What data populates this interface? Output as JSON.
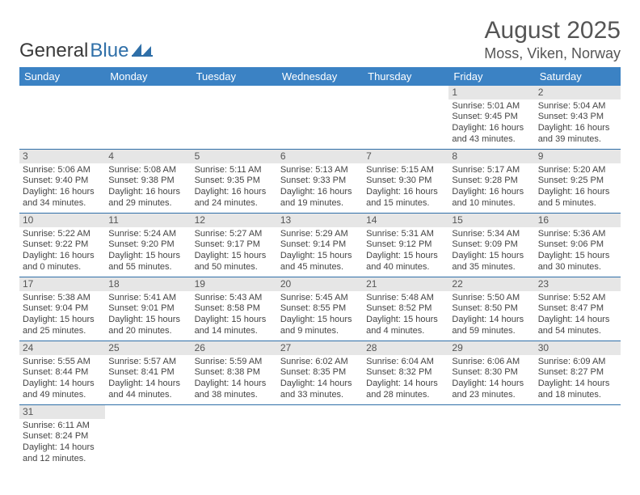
{
  "logo": {
    "part1": "General",
    "part2": "Blue"
  },
  "header": {
    "title": "August 2025",
    "location": "Moss, Viken, Norway"
  },
  "colors": {
    "header_blue": "#3b82c4",
    "row_separator": "#2f6fa8",
    "daynum_bg": "#e6e6e6",
    "text": "#3a3a3a"
  },
  "weekdays": [
    "Sunday",
    "Monday",
    "Tuesday",
    "Wednesday",
    "Thursday",
    "Friday",
    "Saturday"
  ],
  "weeks": [
    [
      null,
      null,
      null,
      null,
      null,
      {
        "n": "1",
        "sr": "Sunrise: 5:01 AM",
        "ss": "Sunset: 9:45 PM",
        "d1": "Daylight: 16 hours",
        "d2": "and 43 minutes."
      },
      {
        "n": "2",
        "sr": "Sunrise: 5:04 AM",
        "ss": "Sunset: 9:43 PM",
        "d1": "Daylight: 16 hours",
        "d2": "and 39 minutes."
      }
    ],
    [
      {
        "n": "3",
        "sr": "Sunrise: 5:06 AM",
        "ss": "Sunset: 9:40 PM",
        "d1": "Daylight: 16 hours",
        "d2": "and 34 minutes."
      },
      {
        "n": "4",
        "sr": "Sunrise: 5:08 AM",
        "ss": "Sunset: 9:38 PM",
        "d1": "Daylight: 16 hours",
        "d2": "and 29 minutes."
      },
      {
        "n": "5",
        "sr": "Sunrise: 5:11 AM",
        "ss": "Sunset: 9:35 PM",
        "d1": "Daylight: 16 hours",
        "d2": "and 24 minutes."
      },
      {
        "n": "6",
        "sr": "Sunrise: 5:13 AM",
        "ss": "Sunset: 9:33 PM",
        "d1": "Daylight: 16 hours",
        "d2": "and 19 minutes."
      },
      {
        "n": "7",
        "sr": "Sunrise: 5:15 AM",
        "ss": "Sunset: 9:30 PM",
        "d1": "Daylight: 16 hours",
        "d2": "and 15 minutes."
      },
      {
        "n": "8",
        "sr": "Sunrise: 5:17 AM",
        "ss": "Sunset: 9:28 PM",
        "d1": "Daylight: 16 hours",
        "d2": "and 10 minutes."
      },
      {
        "n": "9",
        "sr": "Sunrise: 5:20 AM",
        "ss": "Sunset: 9:25 PM",
        "d1": "Daylight: 16 hours",
        "d2": "and 5 minutes."
      }
    ],
    [
      {
        "n": "10",
        "sr": "Sunrise: 5:22 AM",
        "ss": "Sunset: 9:22 PM",
        "d1": "Daylight: 16 hours",
        "d2": "and 0 minutes."
      },
      {
        "n": "11",
        "sr": "Sunrise: 5:24 AM",
        "ss": "Sunset: 9:20 PM",
        "d1": "Daylight: 15 hours",
        "d2": "and 55 minutes."
      },
      {
        "n": "12",
        "sr": "Sunrise: 5:27 AM",
        "ss": "Sunset: 9:17 PM",
        "d1": "Daylight: 15 hours",
        "d2": "and 50 minutes."
      },
      {
        "n": "13",
        "sr": "Sunrise: 5:29 AM",
        "ss": "Sunset: 9:14 PM",
        "d1": "Daylight: 15 hours",
        "d2": "and 45 minutes."
      },
      {
        "n": "14",
        "sr": "Sunrise: 5:31 AM",
        "ss": "Sunset: 9:12 PM",
        "d1": "Daylight: 15 hours",
        "d2": "and 40 minutes."
      },
      {
        "n": "15",
        "sr": "Sunrise: 5:34 AM",
        "ss": "Sunset: 9:09 PM",
        "d1": "Daylight: 15 hours",
        "d2": "and 35 minutes."
      },
      {
        "n": "16",
        "sr": "Sunrise: 5:36 AM",
        "ss": "Sunset: 9:06 PM",
        "d1": "Daylight: 15 hours",
        "d2": "and 30 minutes."
      }
    ],
    [
      {
        "n": "17",
        "sr": "Sunrise: 5:38 AM",
        "ss": "Sunset: 9:04 PM",
        "d1": "Daylight: 15 hours",
        "d2": "and 25 minutes."
      },
      {
        "n": "18",
        "sr": "Sunrise: 5:41 AM",
        "ss": "Sunset: 9:01 PM",
        "d1": "Daylight: 15 hours",
        "d2": "and 20 minutes."
      },
      {
        "n": "19",
        "sr": "Sunrise: 5:43 AM",
        "ss": "Sunset: 8:58 PM",
        "d1": "Daylight: 15 hours",
        "d2": "and 14 minutes."
      },
      {
        "n": "20",
        "sr": "Sunrise: 5:45 AM",
        "ss": "Sunset: 8:55 PM",
        "d1": "Daylight: 15 hours",
        "d2": "and 9 minutes."
      },
      {
        "n": "21",
        "sr": "Sunrise: 5:48 AM",
        "ss": "Sunset: 8:52 PM",
        "d1": "Daylight: 15 hours",
        "d2": "and 4 minutes."
      },
      {
        "n": "22",
        "sr": "Sunrise: 5:50 AM",
        "ss": "Sunset: 8:50 PM",
        "d1": "Daylight: 14 hours",
        "d2": "and 59 minutes."
      },
      {
        "n": "23",
        "sr": "Sunrise: 5:52 AM",
        "ss": "Sunset: 8:47 PM",
        "d1": "Daylight: 14 hours",
        "d2": "and 54 minutes."
      }
    ],
    [
      {
        "n": "24",
        "sr": "Sunrise: 5:55 AM",
        "ss": "Sunset: 8:44 PM",
        "d1": "Daylight: 14 hours",
        "d2": "and 49 minutes."
      },
      {
        "n": "25",
        "sr": "Sunrise: 5:57 AM",
        "ss": "Sunset: 8:41 PM",
        "d1": "Daylight: 14 hours",
        "d2": "and 44 minutes."
      },
      {
        "n": "26",
        "sr": "Sunrise: 5:59 AM",
        "ss": "Sunset: 8:38 PM",
        "d1": "Daylight: 14 hours",
        "d2": "and 38 minutes."
      },
      {
        "n": "27",
        "sr": "Sunrise: 6:02 AM",
        "ss": "Sunset: 8:35 PM",
        "d1": "Daylight: 14 hours",
        "d2": "and 33 minutes."
      },
      {
        "n": "28",
        "sr": "Sunrise: 6:04 AM",
        "ss": "Sunset: 8:32 PM",
        "d1": "Daylight: 14 hours",
        "d2": "and 28 minutes."
      },
      {
        "n": "29",
        "sr": "Sunrise: 6:06 AM",
        "ss": "Sunset: 8:30 PM",
        "d1": "Daylight: 14 hours",
        "d2": "and 23 minutes."
      },
      {
        "n": "30",
        "sr": "Sunrise: 6:09 AM",
        "ss": "Sunset: 8:27 PM",
        "d1": "Daylight: 14 hours",
        "d2": "and 18 minutes."
      }
    ],
    [
      {
        "n": "31",
        "sr": "Sunrise: 6:11 AM",
        "ss": "Sunset: 8:24 PM",
        "d1": "Daylight: 14 hours",
        "d2": "and 12 minutes."
      },
      null,
      null,
      null,
      null,
      null,
      null
    ]
  ]
}
